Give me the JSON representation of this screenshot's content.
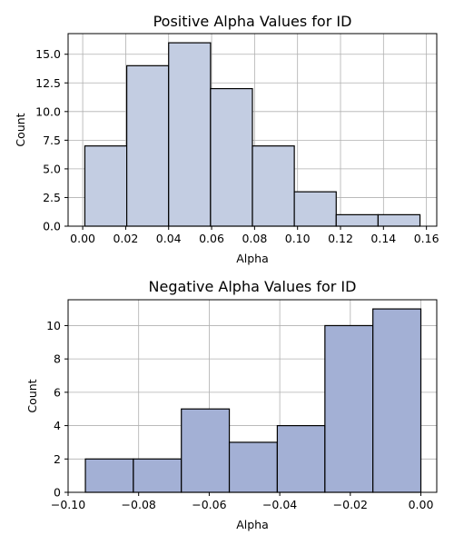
{
  "chart_data": [
    {
      "type": "bar",
      "title": "Positive Alpha Values for ID",
      "xlabel": "Alpha",
      "ylabel": "Count",
      "bin_edges": [
        0.001,
        0.0205,
        0.04,
        0.0595,
        0.079,
        0.0985,
        0.118,
        0.1375,
        0.157
      ],
      "values": [
        7,
        14,
        16,
        12,
        7,
        3,
        1,
        1
      ],
      "xlim": [
        -0.0068,
        0.1648
      ],
      "ylim": [
        0,
        16.8
      ],
      "xticks": [
        0.0,
        0.02,
        0.04,
        0.06,
        0.08,
        0.1,
        0.12,
        0.14,
        0.16
      ],
      "xtick_labels": [
        "0.00",
        "0.02",
        "0.04",
        "0.06",
        "0.08",
        "0.10",
        "0.12",
        "0.14",
        "0.16"
      ],
      "yticks": [
        0,
        2.5,
        5,
        7.5,
        10,
        12.5,
        15
      ],
      "ytick_labels": [
        "0.0",
        "2.5",
        "5.0",
        "7.5",
        "10.0",
        "12.5",
        "15.0"
      ],
      "bar_color": "#c3cde2",
      "grid": true
    },
    {
      "type": "bar",
      "title": "Negative Alpha Values for ID",
      "xlabel": "Alpha",
      "ylabel": "Count",
      "bin_edges": [
        -0.0951,
        -0.0815,
        -0.0679,
        -0.0543,
        -0.0407,
        -0.0272,
        -0.0136,
        0.0
      ],
      "values": [
        2,
        2,
        5,
        3,
        4,
        10,
        11
      ],
      "xlim": [
        -0.1,
        0.0045
      ],
      "ylim": [
        0,
        11.55
      ],
      "xticks": [
        -0.1,
        -0.08,
        -0.06,
        -0.04,
        -0.02,
        0.0
      ],
      "xtick_labels": [
        "−0.10",
        "−0.08",
        "−0.06",
        "−0.04",
        "−0.02",
        "0.00"
      ],
      "yticks": [
        0,
        2,
        4,
        6,
        8,
        10
      ],
      "ytick_labels": [
        "0",
        "2",
        "4",
        "6",
        "8",
        "10"
      ],
      "bar_color": "#a3b0d5",
      "grid": true
    }
  ]
}
